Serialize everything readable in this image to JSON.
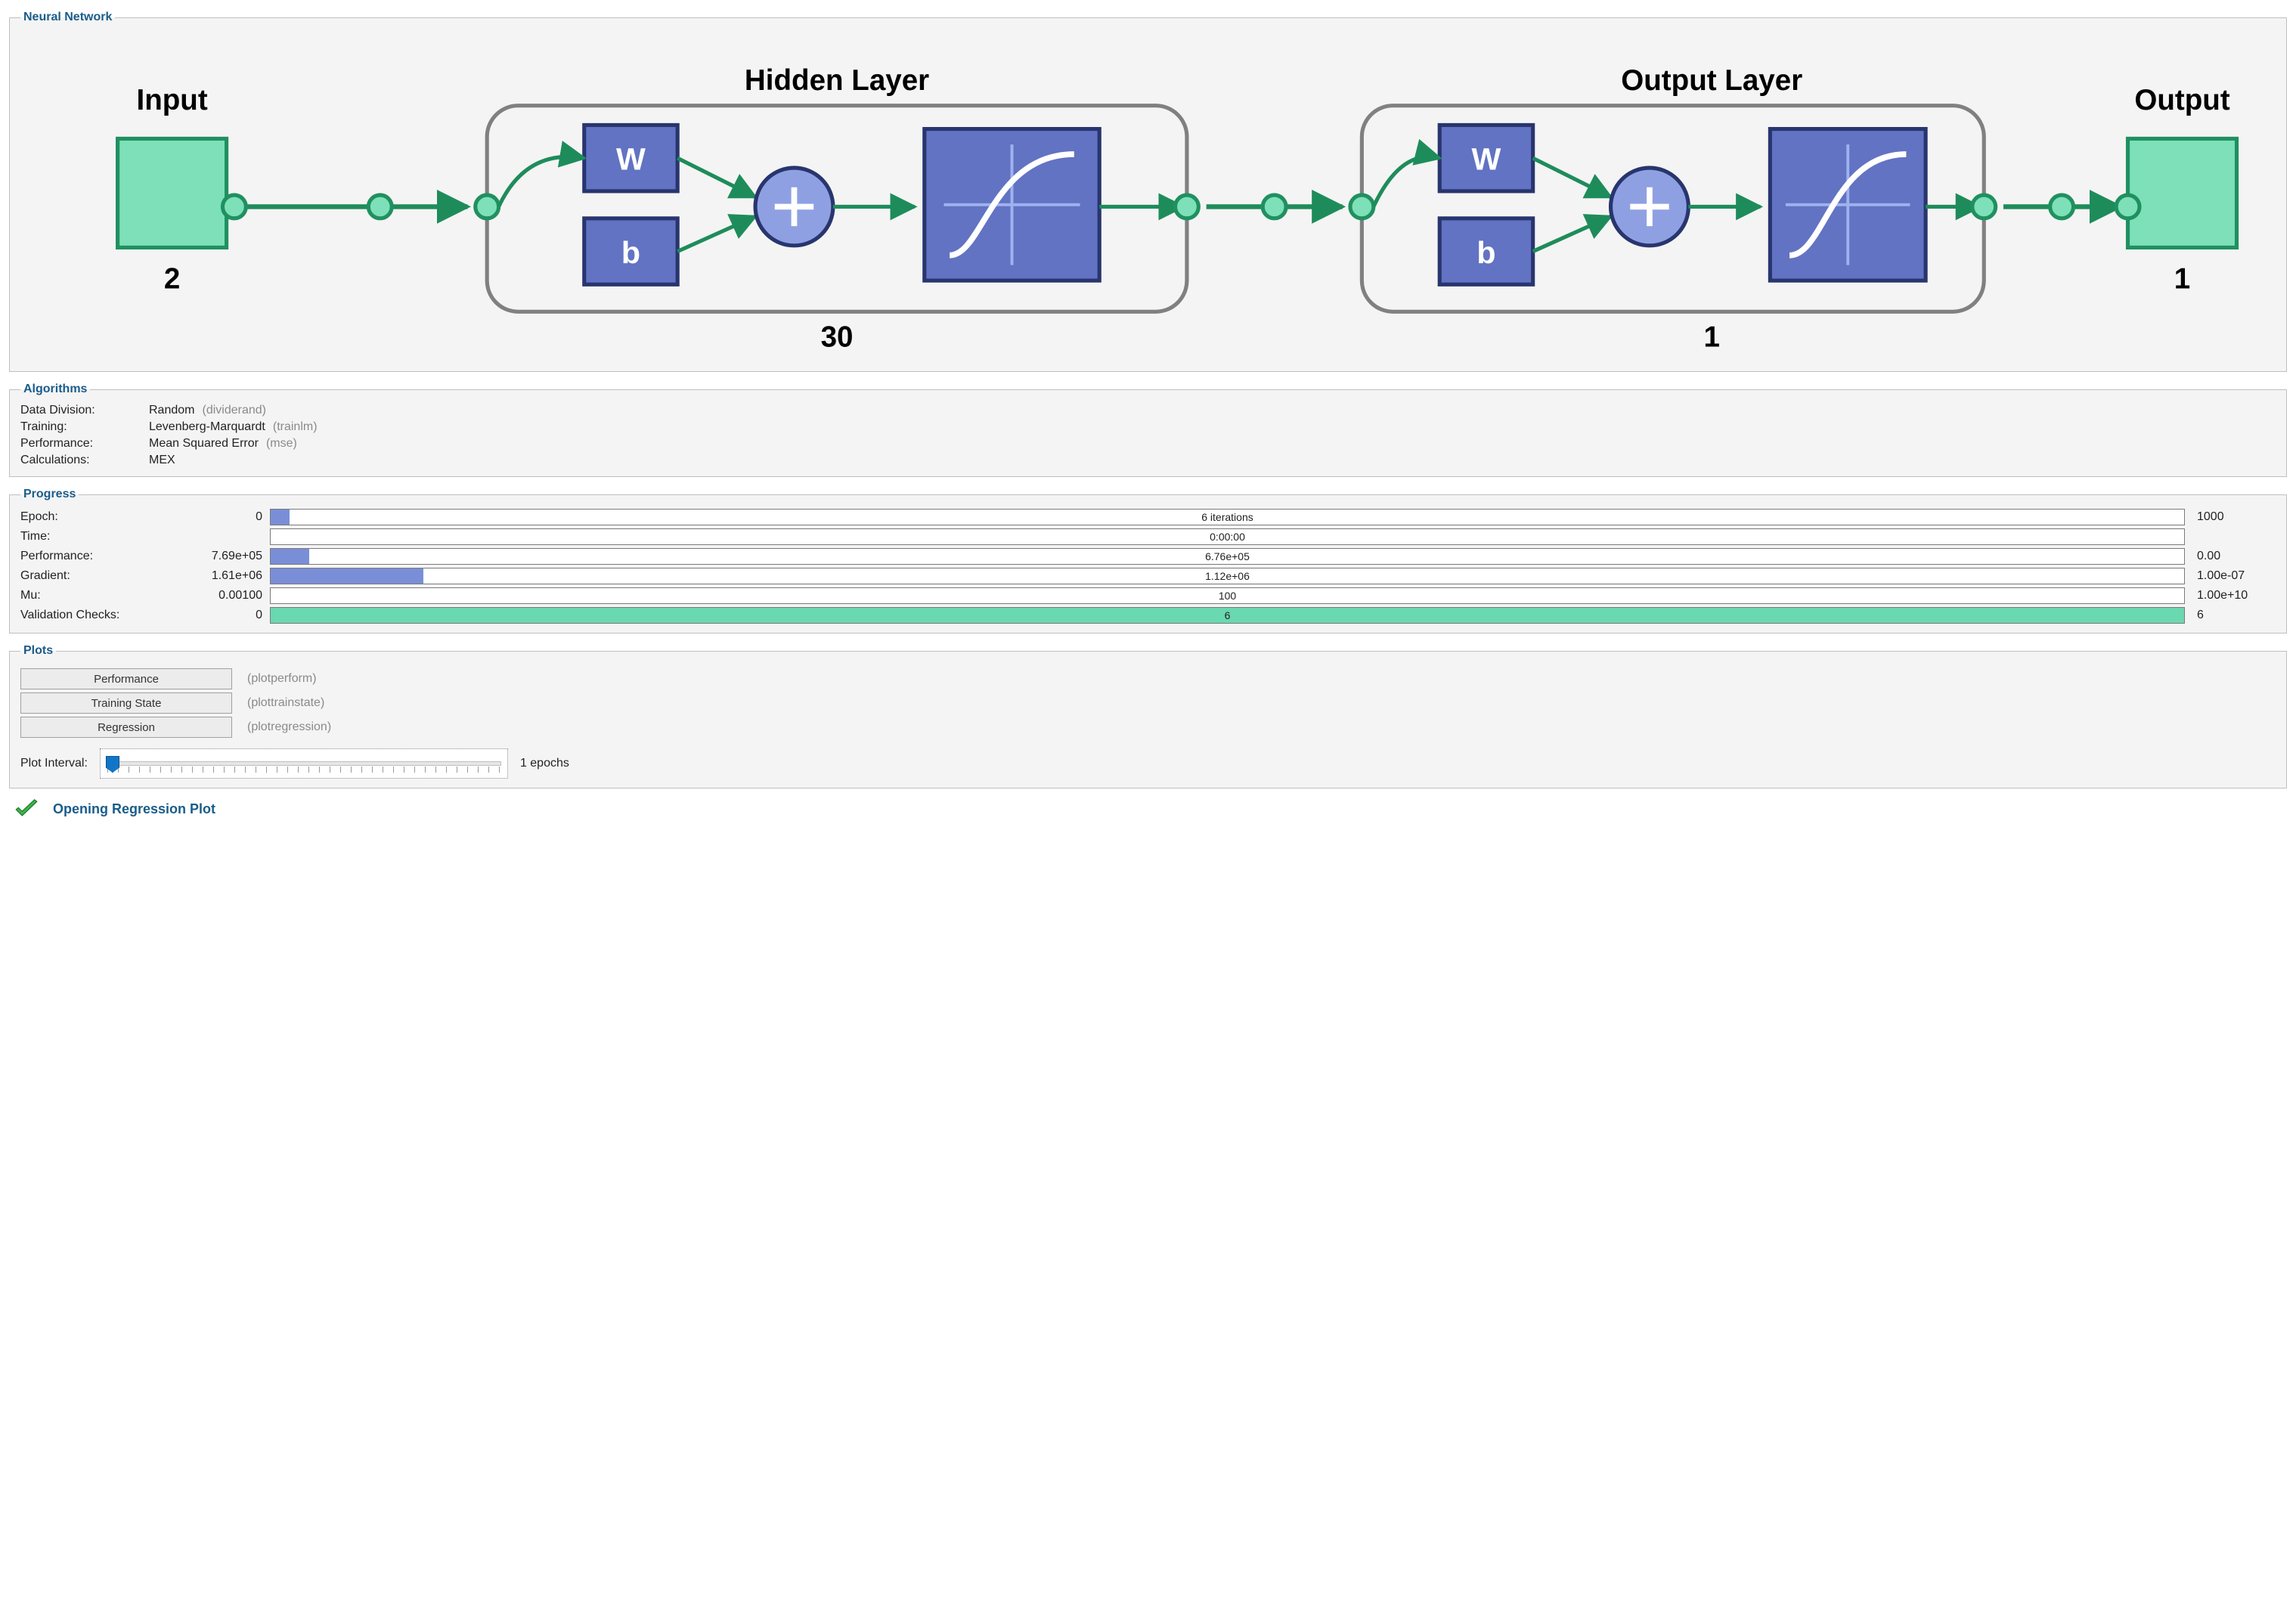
{
  "panels": {
    "nn_title": "Neural Network",
    "algo_title": "Algorithms",
    "prog_title": "Progress",
    "plots_title": "Plots"
  },
  "nn_diagram": {
    "type": "flowchart",
    "colors": {
      "io_fill": "#7de0b8",
      "io_stroke": "#209060",
      "layer_stroke": "#808080",
      "block_fill": "#6273c3",
      "block_stroke": "#28356e",
      "block_light": "#8fa0e2",
      "arrow": "#1e8c5a",
      "text": "#222222",
      "bg": "#f4f4f4"
    },
    "input": {
      "label": "Input",
      "size": "2"
    },
    "output": {
      "label": "Output",
      "size": "1"
    },
    "layers": [
      {
        "title": "Hidden Layer",
        "w": "W",
        "b": "b",
        "neurons": "30",
        "activation": "tansig"
      },
      {
        "title": "Output Layer",
        "w": "W",
        "b": "b",
        "neurons": "1",
        "activation": "purelin"
      }
    ]
  },
  "algorithms": [
    {
      "label": "Data Division:",
      "value": "Random",
      "fn": "(dividerand)"
    },
    {
      "label": "Training:",
      "value": "Levenberg-Marquardt",
      "fn": "(trainlm)"
    },
    {
      "label": "Performance:",
      "value": "Mean Squared Error",
      "fn": "(mse)"
    },
    {
      "label": "Calculations:",
      "value": "MEX",
      "fn": ""
    }
  ],
  "progress": {
    "bar_colors": {
      "blue": "#7a8ed8",
      "green": "#6ad8b0",
      "border": "#7a7a7a",
      "bg": "#ffffff"
    },
    "rows": [
      {
        "label": "Epoch:",
        "start": "0",
        "text": "6 iterations",
        "end": "1000",
        "fill_pct": 1,
        "fill_color": "#7a8ed8"
      },
      {
        "label": "Time:",
        "start": "",
        "text": "0:00:00",
        "end": "",
        "fill_pct": 0,
        "fill_color": "#7a8ed8"
      },
      {
        "label": "Performance:",
        "start": "7.69e+05",
        "text": "6.76e+05",
        "end": "0.00",
        "fill_pct": 2,
        "fill_color": "#7a8ed8"
      },
      {
        "label": "Gradient:",
        "start": "1.61e+06",
        "text": "1.12e+06",
        "end": "1.00e-07",
        "fill_pct": 8,
        "fill_color": "#7a8ed8"
      },
      {
        "label": "Mu:",
        "start": "0.00100",
        "text": "100",
        "end": "1.00e+10",
        "fill_pct": 0,
        "fill_color": "#7a8ed8"
      },
      {
        "label": "Validation Checks:",
        "start": "0",
        "text": "6",
        "end": "6",
        "fill_pct": 100,
        "fill_color": "#6ad8b0"
      }
    ]
  },
  "plots": {
    "buttons": [
      {
        "label": "Performance",
        "fn": "(plotperform)"
      },
      {
        "label": "Training State",
        "fn": "(plottrainstate)"
      },
      {
        "label": "Regression",
        "fn": "(plotregression)"
      }
    ],
    "interval_label": "Plot Interval:",
    "interval_text": "1 epochs",
    "slider_value_pct": 0
  },
  "status": {
    "text": "Opening Regression Plot",
    "icon_color": "#3bb54a"
  }
}
